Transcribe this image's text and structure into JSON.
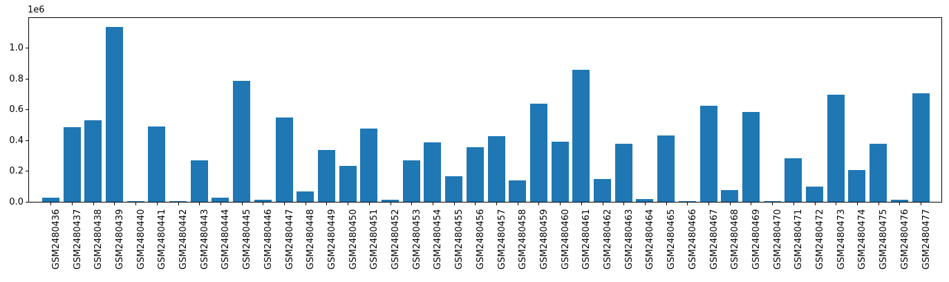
{
  "chart_data": {
    "type": "bar",
    "title": "",
    "xlabel": "",
    "ylabel": "",
    "offset_text": "1e6",
    "categories": [
      "GSM2480436",
      "GSM2480437",
      "GSM2480438",
      "GSM2480439",
      "GSM2480440",
      "GSM2480441",
      "GSM2480442",
      "GSM2480443",
      "GSM2480444",
      "GSM2480445",
      "GSM2480446",
      "GSM2480447",
      "GSM2480448",
      "GSM2480449",
      "GSM2480450",
      "GSM2480451",
      "GSM2480452",
      "GSM2480453",
      "GSM2480454",
      "GSM2480455",
      "GSM2480456",
      "GSM2480457",
      "GSM2480458",
      "GSM2480459",
      "GSM2480460",
      "GSM2480461",
      "GSM2480462",
      "GSM2480463",
      "GSM2480464",
      "GSM2480465",
      "GSM2480466",
      "GSM2480467",
      "GSM2480468",
      "GSM2480469",
      "GSM2480470",
      "GSM2480471",
      "GSM2480472",
      "GSM2480473",
      "GSM2480474",
      "GSM2480475",
      "GSM2480476",
      "GSM2480477"
    ],
    "values": [
      28000,
      485000,
      530000,
      1135000,
      4000,
      490000,
      5000,
      270000,
      28000,
      785000,
      15000,
      545000,
      66000,
      335000,
      235000,
      477000,
      14000,
      271000,
      384000,
      165000,
      355000,
      428000,
      140000,
      637000,
      392000,
      856000,
      150000,
      378000,
      16000,
      432000,
      4000,
      623000,
      78000,
      585000,
      5000,
      284000,
      97000,
      694000,
      208000,
      378000,
      12000,
      703000
    ],
    "ytick_labels": [
      "0.0",
      "0.2",
      "0.4",
      "0.6",
      "0.8",
      "1.0"
    ],
    "ytick_values": [
      0,
      200000,
      400000,
      600000,
      800000,
      1000000
    ],
    "ylim": [
      0,
      1201800
    ],
    "grid": false,
    "legend": null,
    "bar_color": "#1f77b4",
    "spine_color": "#000000",
    "background_color": "#ffffff"
  }
}
